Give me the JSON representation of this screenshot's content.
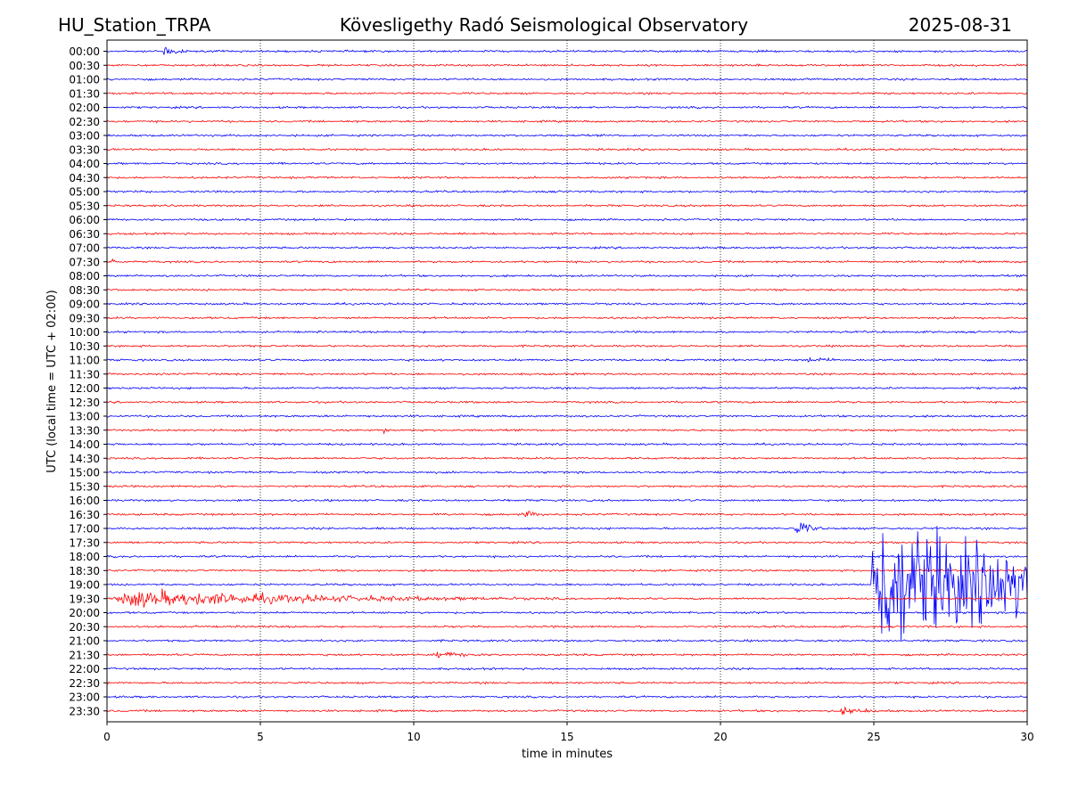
{
  "header": {
    "station": "HU_Station_TRPA",
    "observatory": "Kövesligethy Radó Seismological Observatory",
    "date": "2025-08-31"
  },
  "chart_data": {
    "type": "line",
    "title": "Kövesligethy Radó Seismological Observatory",
    "xlabel": "time in minutes",
    "ylabel": "UTC (local time = UTC + 02:00)",
    "xlim": [
      0,
      30
    ],
    "xticks": [
      0,
      5,
      10,
      15,
      20,
      25,
      30
    ],
    "grid": "vertical dotted lines at each x tick",
    "row_labels": [
      "00:00",
      "00:30",
      "01:00",
      "01:30",
      "02:00",
      "02:30",
      "03:00",
      "03:30",
      "04:00",
      "04:30",
      "05:00",
      "05:30",
      "06:00",
      "06:30",
      "07:00",
      "07:30",
      "08:00",
      "08:30",
      "09:00",
      "09:30",
      "10:00",
      "10:30",
      "11:00",
      "11:30",
      "12:00",
      "12:30",
      "13:00",
      "13:30",
      "14:00",
      "14:30",
      "15:00",
      "15:30",
      "16:00",
      "16:30",
      "17:00",
      "17:30",
      "18:00",
      "18:30",
      "19:00",
      "19:30",
      "20:00",
      "20:30",
      "21:00",
      "21:30",
      "22:00",
      "22:30",
      "23:00",
      "23:30"
    ],
    "trace_colors": [
      "#0000ff",
      "#ff0000"
    ],
    "events": [
      {
        "row": "00:00",
        "start_min": 1.8,
        "end_min": 2.6,
        "amplitude": "moderate"
      },
      {
        "row": "07:30",
        "start_min": 0.1,
        "end_min": 0.8,
        "amplitude": "small"
      },
      {
        "row": "11:00",
        "start_min": 22.8,
        "end_min": 24.5,
        "amplitude": "small"
      },
      {
        "row": "13:30",
        "start_min": 9.0,
        "end_min": 9.4,
        "amplitude": "small"
      },
      {
        "row": "16:30",
        "start_min": 13.5,
        "end_min": 15.0,
        "amplitude": "small"
      },
      {
        "row": "17:00",
        "start_min": 22.4,
        "end_min": 23.5,
        "amplitude": "moderate"
      },
      {
        "row": "19:00",
        "start_min": 24.9,
        "end_min": 30.0,
        "amplitude": "large"
      },
      {
        "row": "19:30",
        "start_min": 0.0,
        "end_min": 15.0,
        "amplitude": "moderate"
      },
      {
        "row": "21:30",
        "start_min": 10.6,
        "end_min": 13.5,
        "amplitude": "small"
      },
      {
        "row": "23:30",
        "start_min": 23.8,
        "end_min": 26.5,
        "amplitude": "small"
      }
    ]
  }
}
